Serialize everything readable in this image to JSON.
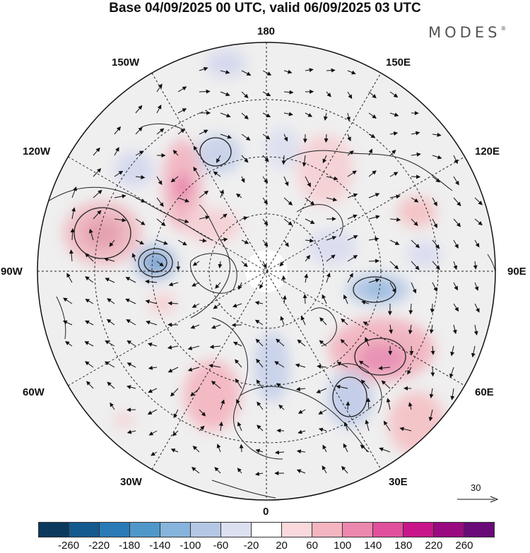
{
  "header": {
    "title": "Base 04/09/2025 00 UTC, valid 06/09/2025 03 UTC",
    "brand": "MODES",
    "brand_mark": "®"
  },
  "map": {
    "projection": "north-polar-stereographic",
    "longitude_labels": {
      "top": "180",
      "top_left": "150W",
      "top_right": "150E",
      "upper_left": "120W",
      "upper_right": "120E",
      "left": "90W",
      "right": "90E",
      "lower_left": "60W",
      "lower_right": "60E",
      "bottom_left": "30W",
      "bottom_right": "30E",
      "bottom": "0"
    },
    "reference_vector": "30"
  },
  "colorbar": {
    "colors": [
      "#0b3a5e",
      "#155a8e",
      "#2a7ab6",
      "#4f97c9",
      "#86b4dc",
      "#b4c8e6",
      "#dcdff0",
      "#ffffff",
      "#f9d9dc",
      "#f4b5c0",
      "#ec88ae",
      "#e0509c",
      "#c8168a",
      "#9a0a80",
      "#6a0a78"
    ],
    "labels": [
      "-260",
      "-220",
      "-180",
      "-140",
      "-100",
      "-60",
      "-20",
      "20",
      "60",
      "100",
      "140",
      "180",
      "220",
      "260"
    ]
  }
}
